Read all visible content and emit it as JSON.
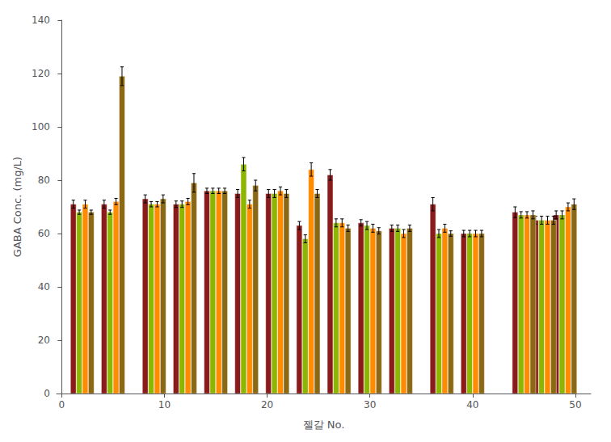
{
  "chart_data": {
    "type": "bar",
    "x": [
      2,
      5,
      9,
      12,
      15,
      18,
      21,
      24,
      27,
      30,
      33,
      37,
      40,
      45,
      47,
      49
    ],
    "series": [
      {
        "color": "#8B1A1A",
        "values": [
          71,
          71,
          73,
          71,
          76,
          75,
          75,
          63,
          82,
          64,
          62,
          71,
          60,
          68,
          65,
          67
        ],
        "errors": [
          1.5,
          1.5,
          1.5,
          1.2,
          1.0,
          1.5,
          1.5,
          1.5,
          2.0,
          1.2,
          1.2,
          2.5,
          1.2,
          2.0,
          1.5,
          1.5
        ]
      },
      {
        "color": "#8DB600",
        "values": [
          68,
          68,
          71,
          71,
          76,
          86,
          75,
          58,
          64,
          63,
          62,
          60,
          60,
          67,
          65,
          67
        ],
        "errors": [
          0.8,
          0.8,
          1.0,
          1.2,
          1.0,
          2.5,
          1.5,
          1.5,
          1.5,
          1.5,
          1.2,
          1.5,
          1.2,
          1.2,
          1.5,
          1.5
        ]
      },
      {
        "color": "#FF8C00",
        "values": [
          71,
          72,
          71,
          72,
          76,
          71,
          76,
          84,
          64,
          62,
          60,
          62,
          60,
          67,
          65,
          70
        ],
        "errors": [
          1.5,
          1.2,
          1.0,
          1.2,
          1.0,
          1.5,
          1.5,
          2.5,
          1.5,
          1.5,
          1.5,
          1.5,
          1.2,
          1.2,
          1.5,
          1.5
        ]
      },
      {
        "color": "#8B6914",
        "values": [
          68,
          119,
          73,
          79,
          76,
          78,
          75,
          75,
          62,
          61,
          62,
          60,
          60,
          67,
          65,
          71
        ],
        "errors": [
          0.8,
          3.5,
          1.5,
          3.5,
          1.0,
          2.0,
          1.5,
          1.5,
          1.2,
          1.2,
          1.2,
          1.0,
          1.2,
          1.5,
          1.5,
          2.0
        ]
      }
    ],
    "xlim": [
      -0.5,
      51.5
    ],
    "xticks": [
      0,
      10,
      20,
      30,
      40,
      50
    ],
    "ylim": [
      0,
      140
    ],
    "yticks": [
      0,
      20,
      40,
      60,
      80,
      100,
      120,
      140
    ],
    "xlabel": "젤갈 No.",
    "ylabel": "GABA Conc. (mg/L)",
    "grid": false
  }
}
